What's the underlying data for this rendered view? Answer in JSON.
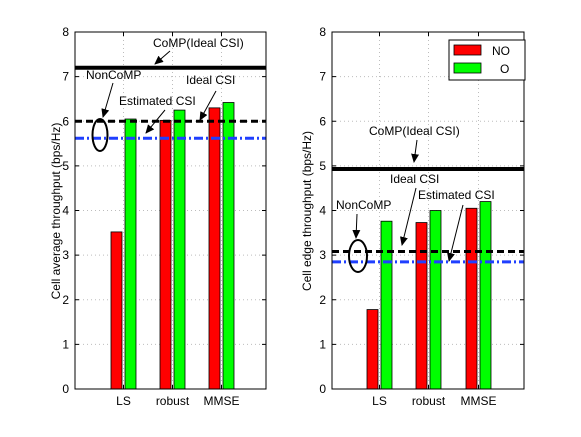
{
  "colors": {
    "no": "#ff0000",
    "o": "#00ff00",
    "comp_line": "#000000",
    "ideal_line": "#000000",
    "estimated_line": "#1f3fff"
  },
  "chart_data": [
    {
      "type": "bar",
      "categories": [
        "LS",
        "robust",
        "MMSE"
      ],
      "series": [
        {
          "name": "NO",
          "values": [
            3.52,
            6.02,
            6.3
          ]
        },
        {
          "name": "O",
          "values": [
            6.05,
            6.25,
            6.42
          ]
        }
      ],
      "ylabel": "Cell average throughput (bps/Hz)",
      "ylim": [
        0,
        8
      ],
      "yticks": [
        "0",
        "1",
        "2",
        "3",
        "4",
        "5",
        "6",
        "7",
        "8"
      ],
      "grid": true,
      "reference_lines": [
        {
          "value": 7.2,
          "style": "solid",
          "color_key": "comp_line"
        },
        {
          "value": 6.0,
          "style": "dashed",
          "color_key": "ideal_line"
        },
        {
          "value": 5.62,
          "style": "dashdot",
          "color_key": "estimated_line"
        }
      ],
      "annotations": [
        {
          "text": "CoMP(Ideal CSI)"
        },
        {
          "text": "NonCoMP"
        },
        {
          "text": "Ideal CSI"
        },
        {
          "text": "Estimated CSI"
        }
      ]
    },
    {
      "type": "bar",
      "categories": [
        "LS",
        "robust",
        "MMSE"
      ],
      "series": [
        {
          "name": "NO",
          "values": [
            1.78,
            3.73,
            4.05
          ]
        },
        {
          "name": "O",
          "values": [
            3.76,
            4.0,
            4.2
          ]
        }
      ],
      "ylabel": "Cell edge throughput (bps/Hz)",
      "ylim": [
        0,
        8
      ],
      "yticks": [
        "0",
        "1",
        "2",
        "3",
        "4",
        "5",
        "6",
        "7",
        "8"
      ],
      "grid": true,
      "legend": {
        "placement": "top-right",
        "entries": [
          "NO",
          "O"
        ]
      },
      "reference_lines": [
        {
          "value": 4.93,
          "style": "solid",
          "color_key": "comp_line"
        },
        {
          "value": 3.08,
          "style": "dashed",
          "color_key": "ideal_line"
        },
        {
          "value": 2.85,
          "style": "dashdot",
          "color_key": "estimated_line"
        }
      ],
      "annotations": [
        {
          "text": "CoMP(Ideal CSI)"
        },
        {
          "text": "NonCoMP"
        },
        {
          "text": "Ideal CSI"
        },
        {
          "text": "Estimated CSI"
        }
      ]
    }
  ]
}
